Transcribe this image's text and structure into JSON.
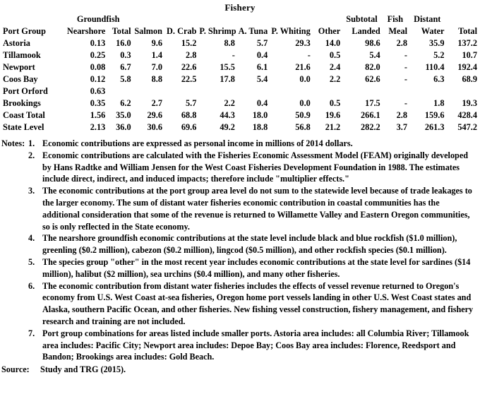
{
  "colors": {
    "text": "#000000",
    "background": "#ffffff"
  },
  "title": "Fishery",
  "table": {
    "group_headers": {
      "groundfish": "Groundfish",
      "subtotal": "Subtotal",
      "fish": "Fish",
      "distant": "Distant"
    },
    "columns": [
      "Port Group",
      "Nearshore",
      "Total",
      "Salmon",
      "D. Crab",
      "P. Shrimp",
      "A. Tuna",
      "P. Whiting",
      "Other",
      "Landed",
      "Meal",
      "Water",
      "Total"
    ],
    "units_note": "personal income in millions of 2014 dollars",
    "rows": [
      {
        "label": "Astoria",
        "values": [
          "0.13",
          "16.0",
          "9.6",
          "15.2",
          "8.8",
          "5.7",
          "29.3",
          "14.0",
          "98.6",
          "2.8",
          "35.9",
          "137.2"
        ]
      },
      {
        "label": "Tillamook",
        "values": [
          "0.25",
          "0.3",
          "1.4",
          "2.8",
          "-",
          "0.4",
          "-",
          "0.5",
          "5.4",
          "-",
          "5.2",
          "10.7"
        ]
      },
      {
        "label": "Newport",
        "values": [
          "0.08",
          "6.7",
          "7.0",
          "22.6",
          "15.5",
          "6.1",
          "21.6",
          "2.4",
          "82.0",
          "-",
          "110.4",
          "192.4"
        ]
      },
      {
        "label": "Coos Bay",
        "values": [
          "0.12",
          "5.8",
          "8.8",
          "22.5",
          "17.8",
          "5.4",
          "0.0",
          "2.2",
          "62.6",
          "-",
          "6.3",
          "68.9"
        ]
      },
      {
        "label": "Port Orford",
        "values": [
          "0.63",
          "",
          "",
          "",
          "",
          "",
          "",
          "",
          "",
          "",
          "",
          ""
        ]
      },
      {
        "label": "Brookings",
        "values": [
          "0.35",
          "6.2",
          "2.7",
          "5.7",
          "2.2",
          "0.4",
          "0.0",
          "0.5",
          "17.5",
          "-",
          "1.8",
          "19.3"
        ]
      },
      {
        "label": "Coast Total",
        "values": [
          "1.56",
          "35.0",
          "29.6",
          "68.8",
          "44.3",
          "18.0",
          "50.9",
          "19.6",
          "266.1",
          "2.8",
          "159.6",
          "428.4"
        ]
      },
      {
        "label": "State Level",
        "values": [
          "2.13",
          "36.0",
          "30.6",
          "69.6",
          "49.2",
          "18.8",
          "56.8",
          "21.2",
          "282.2",
          "3.7",
          "261.3",
          "547.2"
        ]
      }
    ]
  },
  "notes": {
    "label": "Notes:",
    "items": [
      {
        "num": "1.",
        "text": "Economic contributions are expressed as personal income in millions of 2014 dollars."
      },
      {
        "num": "2.",
        "text": "Economic contributions are calculated with the Fisheries Economic Assessment Model (FEAM) originally developed by Hans Radtke and William Jensen for the West Coast Fisheries Development Foundation in 1988.  The estimates include direct, indirect, and induced impacts; therefore include \"multiplier effects.\""
      },
      {
        "num": "3.",
        "text": "The economic contributions at the port group area level do not sum to the statewide level because of trade leakages to the larger economy.  The sum of distant water fisheries economic contribution in coastal communities has the additional consideration that some of the revenue is returned to Willamette Valley and Eastern Oregon communities, so is only reflected in the State economy."
      },
      {
        "num": "4.",
        "text": "The nearshore groundfish economic contributions at the state level include black and blue rockfish ($1.0 million), greenling ($0.2 million), cabezon ($0.2 million), lingcod ($0.5 million), and other rockfish species ($0.1 million)."
      },
      {
        "num": "5.",
        "text": "The species group \"other\" in the most recent year includes economic contributions at the state level for sardines ($14 million), halibut ($2 million), sea urchins ($0.4 million), and many other fisheries."
      },
      {
        "num": "6.",
        "text": "The economic contribution from distant water fisheries includes the effects of vessel revenue returned to Oregon's economy from U.S. West Coast at-sea fisheries, Oregon home port vessels landing in other U.S. West Coast states and Alaska, southern Pacific Ocean, and other fisheries.  New fishing vessel construction, fishery management, and fishery research and training are not included."
      },
      {
        "num": "7.",
        "text": "Port group combinations for areas listed include smaller ports.  Astoria area includes: all Columbia River; Tillamook area includes: Pacific City; Newport area includes: Depoe Bay; Coos Bay area includes: Florence, Reedsport and Bandon; Brookings area includes: Gold Beach."
      }
    ]
  },
  "source": {
    "label": "Source:",
    "text": "Study and TRG (2015)."
  }
}
